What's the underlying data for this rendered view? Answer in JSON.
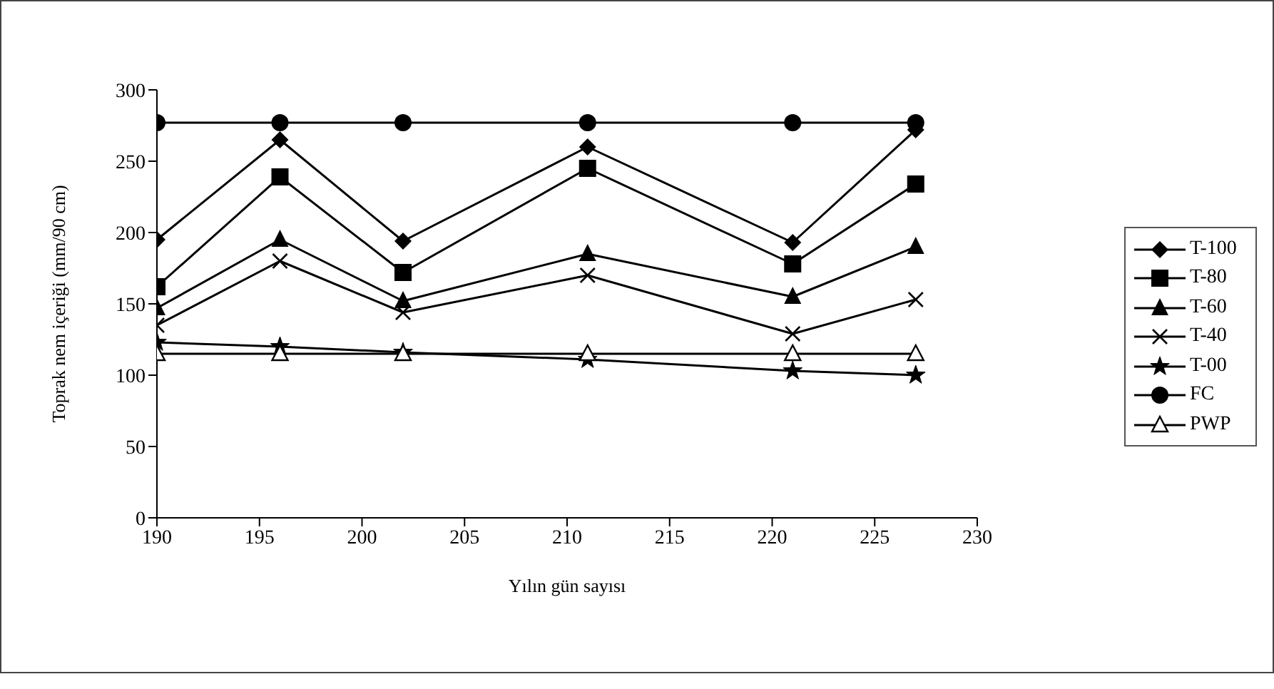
{
  "chart_data": {
    "type": "line",
    "xlabel": "Yılın gün sayısı",
    "ylabel": "Toprak nem içeriği (mm/90 cm)",
    "x": [
      190,
      196,
      202,
      211,
      221,
      227
    ],
    "xlim": [
      190,
      230
    ],
    "xticks": [
      190,
      195,
      200,
      205,
      210,
      215,
      220,
      225,
      230
    ],
    "ylim": [
      0,
      300
    ],
    "yticks": [
      0,
      50,
      100,
      150,
      200,
      250,
      300
    ],
    "grid": false,
    "legend": "right",
    "line_style": "solid",
    "series": [
      {
        "name": "T-100",
        "color": "#000000",
        "marker": "diamond",
        "values": [
          195,
          265,
          194,
          260,
          193,
          272
        ]
      },
      {
        "name": "T-80",
        "color": "#000000",
        "marker": "square",
        "values": [
          162,
          239,
          172,
          245,
          178,
          234
        ]
      },
      {
        "name": "T-60",
        "color": "#000000",
        "marker": "triangle",
        "values": [
          147,
          195,
          152,
          185,
          155,
          190
        ]
      },
      {
        "name": "T-40",
        "color": "#000000",
        "marker": "cross",
        "values": [
          135,
          180,
          144,
          170,
          129,
          153
        ]
      },
      {
        "name": "T-00",
        "color": "#000000",
        "marker": "star",
        "values": [
          123,
          120,
          116,
          111,
          103,
          100
        ]
      },
      {
        "name": "FC",
        "color": "#000000",
        "marker": "circle",
        "values": [
          277,
          277,
          277,
          277,
          277,
          277
        ]
      },
      {
        "name": "PWP",
        "color": "#000000",
        "marker": "triangle-open",
        "values": [
          115,
          115,
          115,
          115,
          115,
          115
        ]
      }
    ]
  }
}
